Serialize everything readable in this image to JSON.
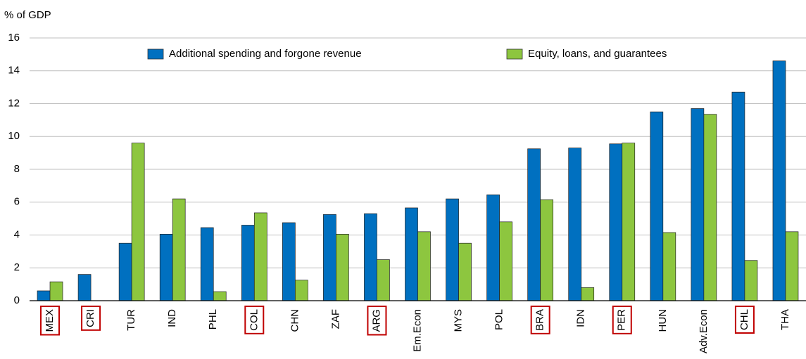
{
  "chart_data": {
    "type": "bar",
    "y_label": "% of GDP",
    "categories": [
      "MEX",
      "CRI",
      "TUR",
      "IND",
      "PHL",
      "COL",
      "CHN",
      "ZAF",
      "ARG",
      "Em.Econ",
      "MYS",
      "POL",
      "BRA",
      "IDN",
      "PER",
      "HUN",
      "Adv.Econ",
      "CHL",
      "THA"
    ],
    "highlighted": [
      true,
      true,
      false,
      false,
      false,
      true,
      false,
      false,
      true,
      false,
      false,
      false,
      true,
      false,
      true,
      false,
      false,
      true,
      false
    ],
    "highlight_color": "#c00000",
    "series": [
      {
        "name": "Additional spending and forgone revenue",
        "color": "#0070c0",
        "values": [
          0.6,
          1.6,
          3.5,
          4.05,
          4.45,
          4.6,
          4.75,
          5.25,
          5.3,
          5.65,
          6.2,
          6.45,
          9.25,
          9.3,
          9.55,
          11.5,
          11.7,
          12.7,
          14.6
        ]
      },
      {
        "name": "Equity, loans, and guarantees",
        "color": "#8dc63f",
        "values": [
          1.15,
          0,
          9.6,
          6.2,
          0.55,
          5.35,
          1.25,
          4.05,
          2.5,
          4.2,
          3.5,
          4.8,
          6.15,
          0.8,
          9.6,
          4.15,
          11.35,
          2.45,
          4.2
        ]
      }
    ],
    "ylim": [
      0,
      16
    ],
    "yticks": [
      0,
      2,
      4,
      6,
      8,
      10,
      12,
      14,
      16
    ],
    "grid": true,
    "legend": "top"
  }
}
